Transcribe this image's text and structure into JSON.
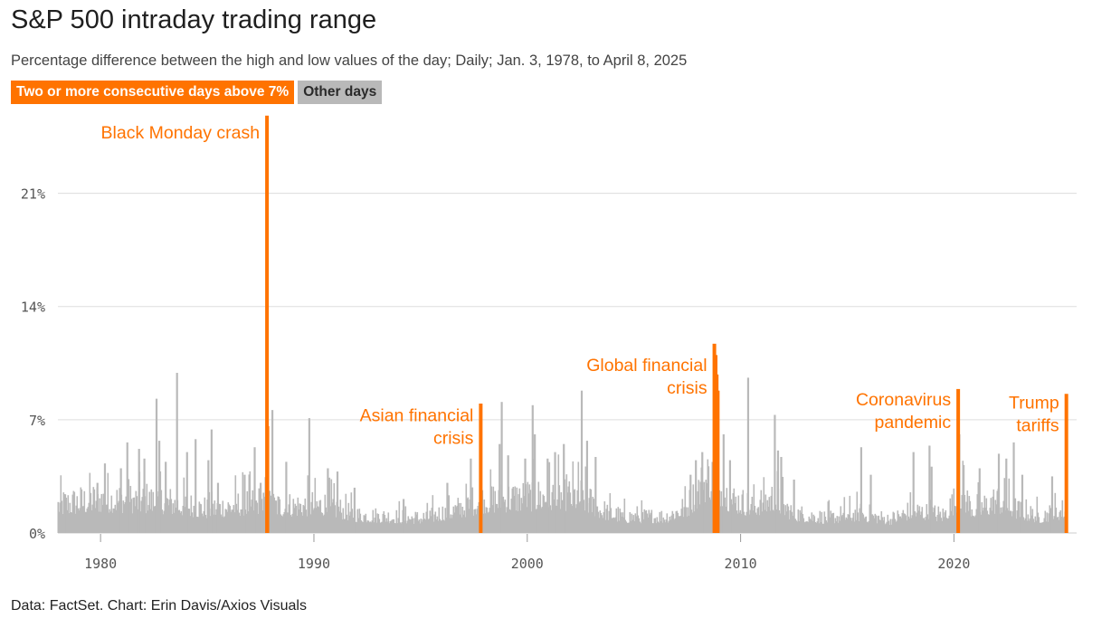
{
  "title": "S&P 500 intraday trading range",
  "subtitle": "Percentage difference between the high and low values of the day; Daily; Jan. 3, 1978, to April 8, 2025",
  "legend": {
    "highlight": "Two or more consecutive days above 7%",
    "other": "Other days"
  },
  "footer": "Data: FactSet. Chart: Erin Davis/Axios Visuals",
  "colors": {
    "highlight": "#ff7300",
    "other": "#b9b9b9",
    "grid": "#dddddd",
    "axis": "#555555"
  },
  "chart_data": {
    "type": "bar",
    "x_domain": [
      1978.0,
      2025.75
    ],
    "ylim": [
      0,
      25.9
    ],
    "yticks": [
      0,
      7,
      14,
      21
    ],
    "ytick_labels": [
      "0%",
      "7%",
      "14%",
      "21%"
    ],
    "xticks": [
      1980,
      1990,
      2000,
      2010,
      2020
    ],
    "xtick_labels": [
      "1980",
      "1990",
      "2000",
      "2010",
      "2020"
    ],
    "highlight_series": [
      {
        "date": 1987.8,
        "value": 25.8
      },
      {
        "date": 1987.82,
        "value": 6.6
      },
      {
        "date": 1997.82,
        "value": 8.0
      },
      {
        "date": 2008.77,
        "value": 11.7
      },
      {
        "date": 2008.83,
        "value": 11.0
      },
      {
        "date": 2008.88,
        "value": 9.8
      },
      {
        "date": 2008.93,
        "value": 8.8
      },
      {
        "date": 2020.2,
        "value": 8.9
      },
      {
        "date": 2025.27,
        "value": 8.6
      }
    ],
    "other_spikes": [
      {
        "date": 1978.3,
        "value": 2.4
      },
      {
        "date": 1979.85,
        "value": 3.1
      },
      {
        "date": 1980.2,
        "value": 4.3
      },
      {
        "date": 1980.95,
        "value": 4.0
      },
      {
        "date": 1981.25,
        "value": 5.6
      },
      {
        "date": 1981.8,
        "value": 5.2
      },
      {
        "date": 1982.05,
        "value": 4.6
      },
      {
        "date": 1982.62,
        "value": 8.3
      },
      {
        "date": 1982.75,
        "value": 5.7
      },
      {
        "date": 1983.05,
        "value": 4.4
      },
      {
        "date": 1983.58,
        "value": 9.9
      },
      {
        "date": 1984.05,
        "value": 5.0
      },
      {
        "date": 1984.45,
        "value": 5.8
      },
      {
        "date": 1985.05,
        "value": 4.5
      },
      {
        "date": 1985.2,
        "value": 6.4
      },
      {
        "date": 1985.5,
        "value": 3.1
      },
      {
        "date": 1986.75,
        "value": 3.6
      },
      {
        "date": 1987.22,
        "value": 5.3
      },
      {
        "date": 1987.5,
        "value": 3.1
      },
      {
        "date": 1988.05,
        "value": 7.6
      },
      {
        "date": 1988.7,
        "value": 4.4
      },
      {
        "date": 1989.78,
        "value": 7.1
      },
      {
        "date": 1990.65,
        "value": 4.0
      },
      {
        "date": 1991.1,
        "value": 3.8
      },
      {
        "date": 1991.9,
        "value": 2.8
      },
      {
        "date": 1994.2,
        "value": 2.1
      },
      {
        "date": 1996.25,
        "value": 3.1
      },
      {
        "date": 1997.35,
        "value": 4.6
      },
      {
        "date": 1998.7,
        "value": 5.5
      },
      {
        "date": 1998.8,
        "value": 8.1
      },
      {
        "date": 1999.1,
        "value": 4.8
      },
      {
        "date": 1999.9,
        "value": 4.6
      },
      {
        "date": 2000.25,
        "value": 7.9
      },
      {
        "date": 2000.35,
        "value": 6.1
      },
      {
        "date": 2000.95,
        "value": 4.6
      },
      {
        "date": 2001.3,
        "value": 5.0
      },
      {
        "date": 2001.71,
        "value": 5.5
      },
      {
        "date": 2002.55,
        "value": 8.8
      },
      {
        "date": 2002.8,
        "value": 5.7
      },
      {
        "date": 2003.2,
        "value": 4.7
      },
      {
        "date": 2007.65,
        "value": 3.6
      },
      {
        "date": 2007.9,
        "value": 4.5
      },
      {
        "date": 2008.2,
        "value": 5.0
      },
      {
        "date": 2009.2,
        "value": 6.1
      },
      {
        "date": 2009.5,
        "value": 4.5
      },
      {
        "date": 2010.35,
        "value": 9.6
      },
      {
        "date": 2011.6,
        "value": 7.3
      },
      {
        "date": 2011.75,
        "value": 5.1
      },
      {
        "date": 2011.9,
        "value": 4.7
      },
      {
        "date": 2012.5,
        "value": 3.3
      },
      {
        "date": 2015.65,
        "value": 5.3
      },
      {
        "date": 2016.1,
        "value": 3.6
      },
      {
        "date": 2018.1,
        "value": 5.0
      },
      {
        "date": 2018.85,
        "value": 5.4
      },
      {
        "date": 2018.95,
        "value": 4.1
      },
      {
        "date": 2020.25,
        "value": 6.1
      },
      {
        "date": 2020.45,
        "value": 4.2
      },
      {
        "date": 2021.2,
        "value": 4.0
      },
      {
        "date": 2022.1,
        "value": 4.9
      },
      {
        "date": 2022.45,
        "value": 4.6
      },
      {
        "date": 2022.8,
        "value": 5.6
      },
      {
        "date": 2023.2,
        "value": 3.6
      },
      {
        "date": 2024.6,
        "value": 3.5
      }
    ],
    "annotations": [
      {
        "lines": [
          "Black Monday crash"
        ],
        "date": 1987.8,
        "value": 24.4,
        "align": "right"
      },
      {
        "lines": [
          "Asian financial",
          "crisis"
        ],
        "date": 1997.82,
        "value": 6.9,
        "align": "right"
      },
      {
        "lines": [
          "Global financial",
          "crisis"
        ],
        "date": 2008.77,
        "value": 10.0,
        "align": "right"
      },
      {
        "lines": [
          "Coronavirus",
          "pandemic"
        ],
        "date": 2020.2,
        "value": 7.9,
        "align": "right"
      },
      {
        "lines": [
          "Trump",
          "tariffs"
        ],
        "date": 2025.27,
        "value": 7.7,
        "align": "right"
      }
    ]
  }
}
